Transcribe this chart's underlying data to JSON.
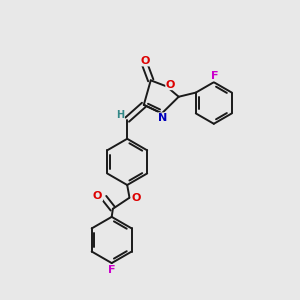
{
  "bg_color": "#e8e8e8",
  "bond_color": "#1a1a1a",
  "atom_colors": {
    "O": "#dd0000",
    "N": "#0000bb",
    "F": "#cc00cc",
    "H": "#338888",
    "C": "#1a1a1a"
  },
  "lw": 1.4,
  "dg": 0.012,
  "fs": 8.0
}
